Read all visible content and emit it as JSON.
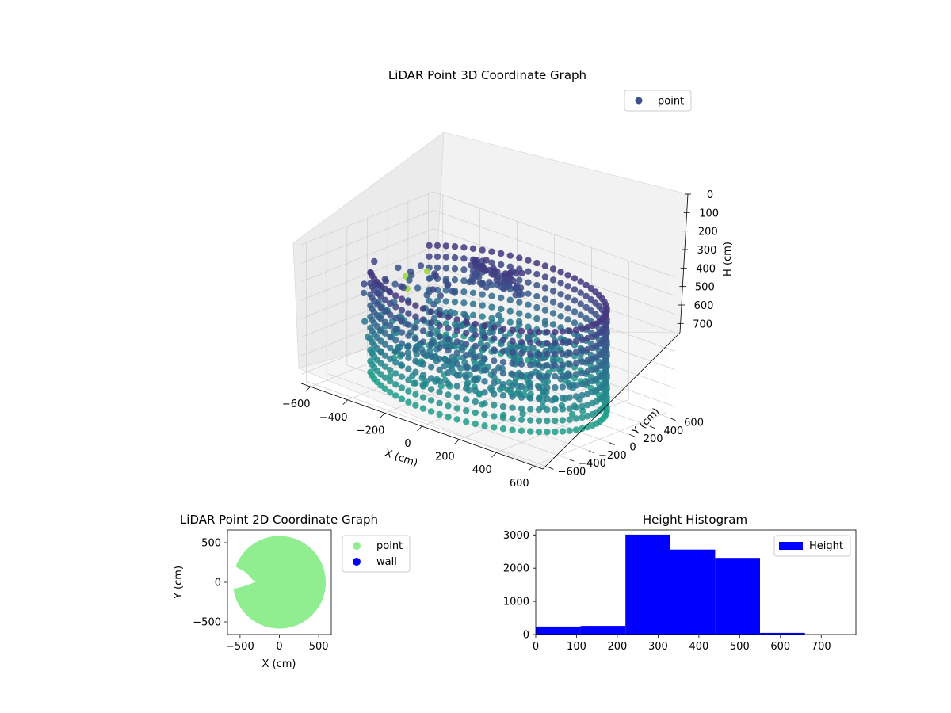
{
  "chart_data": [
    {
      "type": "scatter3d",
      "title": "LiDAR Point 3D Coordinate Graph",
      "xlabel": "X (cm)",
      "ylabel": "Y (cm)",
      "zlabel": "H (cm)",
      "xlim": [
        -650,
        650
      ],
      "ylim": [
        -650,
        650
      ],
      "zlim": [
        750,
        0
      ],
      "xticks": [
        -600,
        -400,
        -200,
        0,
        200,
        400,
        600
      ],
      "yticks": [
        -600,
        -400,
        -200,
        0,
        200,
        400,
        600
      ],
      "zticks": [
        0,
        100,
        200,
        300,
        400,
        500,
        600,
        700
      ],
      "z_inverted": true,
      "grid": true,
      "colormap": "viridis",
      "legend": {
        "position": "top-right",
        "entries": [
          {
            "name": "point",
            "color": "#3b528b"
          }
        ]
      },
      "description_points": {
        "wall_radius": 560,
        "wall_height_range": [
          150,
          700
        ],
        "open_sector_deg": [
          150,
          215
        ],
        "rings": [
          150,
          210,
          270,
          330,
          390,
          450,
          510,
          570,
          630,
          690
        ],
        "column_angle_step_deg": 4.5,
        "interior_cluster_center": [
          -150,
          350,
          220
        ],
        "outliers": [
          {
            "x": -640,
            "y": 360,
            "h": 390
          },
          {
            "x": -600,
            "y": 300,
            "h": 430
          },
          {
            "x": -470,
            "y": 260,
            "h": 280
          }
        ]
      }
    },
    {
      "type": "scatter",
      "title": "LiDAR Point 2D Coordinate Graph",
      "xlabel": "X (cm)",
      "ylabel": "Y (cm)",
      "xlim": [
        -660,
        660
      ],
      "ylim": [
        -660,
        660
      ],
      "xticks": [
        -500,
        0,
        500
      ],
      "yticks": [
        -500,
        0,
        500
      ],
      "legend": {
        "position": "outside-right",
        "entries": [
          {
            "name": "point",
            "color": "#90ee90"
          },
          {
            "name": "wall",
            "color": "#0000ff"
          }
        ]
      },
      "disk": {
        "center": [
          0,
          0
        ],
        "radius": 590,
        "color": "#90ee90"
      },
      "gap_polygon": [
        [
          -660,
          180
        ],
        [
          -560,
          200
        ],
        [
          -420,
          120
        ],
        [
          -340,
          30
        ],
        [
          -290,
          10
        ],
        [
          -420,
          -40
        ],
        [
          -560,
          -80
        ],
        [
          -660,
          -60
        ]
      ]
    },
    {
      "type": "bar",
      "title": "Height Histogram",
      "xlabel": "",
      "ylabel": "",
      "xlim": [
        0,
        785
      ],
      "ylim": [
        0,
        3150
      ],
      "xticks": [
        0,
        100,
        200,
        300,
        400,
        500,
        600,
        700
      ],
      "yticks": [
        0,
        1000,
        2000,
        3000
      ],
      "legend": {
        "position": "top-right",
        "entries": [
          {
            "name": "Height",
            "color": "#0000ff"
          }
        ]
      },
      "bins": [
        {
          "start": 0,
          "end": 110,
          "count": 240
        },
        {
          "start": 110,
          "end": 220,
          "count": 260
        },
        {
          "start": 220,
          "end": 330,
          "count": 3010
        },
        {
          "start": 330,
          "end": 440,
          "count": 2560
        },
        {
          "start": 440,
          "end": 550,
          "count": 2310
        },
        {
          "start": 550,
          "end": 660,
          "count": 50
        },
        {
          "start": 660,
          "end": 770,
          "count": 0
        }
      ]
    }
  ]
}
